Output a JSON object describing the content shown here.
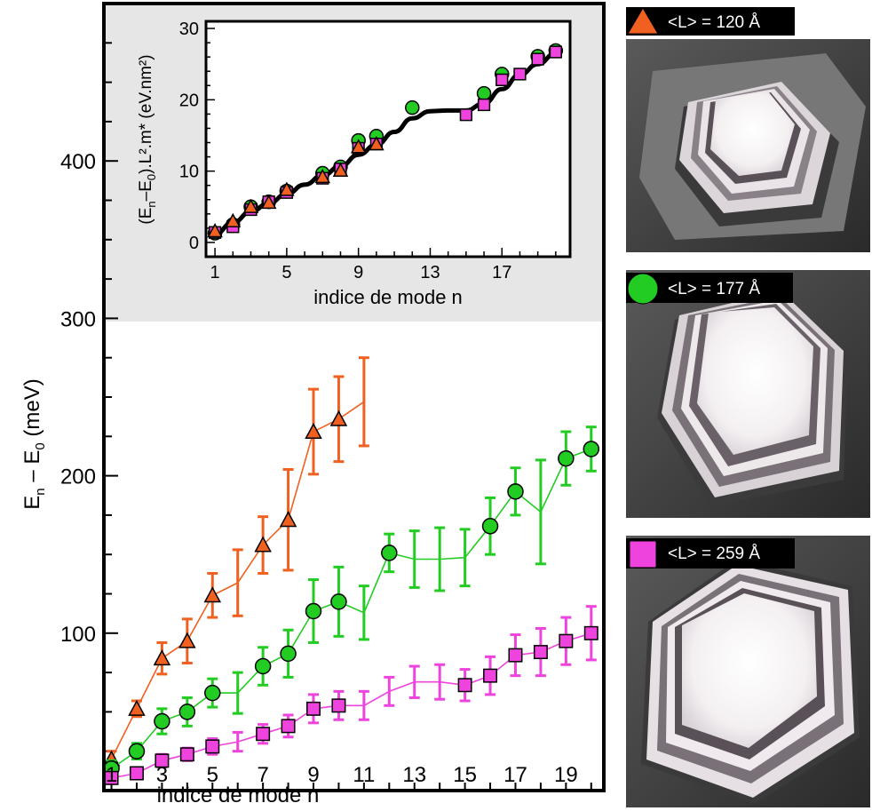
{
  "chart_data": [
    {
      "type": "line",
      "xlabel": "indice de mode  n",
      "ylabel_main": "E",
      "ylabel_sub1": "n",
      "ylabel_mid": " – E",
      "ylabel_sub2": "0",
      "ylabel_unit": " (meV)",
      "xlim": [
        0.7,
        20.5
      ],
      "ylim": [
        0,
        500
      ],
      "xticks": [
        1,
        3,
        5,
        7,
        9,
        11,
        13,
        15,
        17,
        19
      ],
      "yticks": [
        100,
        200,
        300,
        400
      ],
      "grid": false,
      "series": [
        {
          "name": "<L> = 120 Å",
          "marker": "triangle",
          "color": "#f06020",
          "points": [
            {
              "x": 1,
              "y": 20,
              "err": 5,
              "m": true
            },
            {
              "x": 2,
              "y": 52,
              "err": 5,
              "m": true
            },
            {
              "x": 3,
              "y": 84,
              "err": 10,
              "m": true
            },
            {
              "x": 4,
              "y": 95,
              "err": 14,
              "m": true
            },
            {
              "x": 5,
              "y": 124,
              "err": 14,
              "m": true
            },
            {
              "x": 6,
              "y": 132,
              "err": 21,
              "m": false
            },
            {
              "x": 7,
              "y": 156,
              "err": 18,
              "m": true
            },
            {
              "x": 8,
              "y": 172,
              "err": 32,
              "m": true
            },
            {
              "x": 9,
              "y": 228,
              "err": 27,
              "m": true
            },
            {
              "x": 10,
              "y": 236,
              "err": 27,
              "m": true
            },
            {
              "x": 11,
              "y": 247,
              "err": 28,
              "m": false
            }
          ]
        },
        {
          "name": "<L> = 177 Å",
          "marker": "circle",
          "color": "#22cc22",
          "points": [
            {
              "x": 1,
              "y": 14,
              "err": 5,
              "m": true
            },
            {
              "x": 2,
              "y": 25,
              "err": 5,
              "m": true
            },
            {
              "x": 3,
              "y": 44,
              "err": 8,
              "m": true
            },
            {
              "x": 4,
              "y": 50,
              "err": 9,
              "m": true
            },
            {
              "x": 5,
              "y": 62,
              "err": 9,
              "m": true
            },
            {
              "x": 6,
              "y": 62,
              "err": 13,
              "m": false
            },
            {
              "x": 7,
              "y": 79,
              "err": 12,
              "m": true
            },
            {
              "x": 8,
              "y": 87,
              "err": 15,
              "m": true
            },
            {
              "x": 9,
              "y": 114,
              "err": 20,
              "m": true
            },
            {
              "x": 10,
              "y": 120,
              "err": 22,
              "m": true
            },
            {
              "x": 11,
              "y": 113,
              "err": 17,
              "m": false
            },
            {
              "x": 12,
              "y": 151,
              "err": 12,
              "m": true
            },
            {
              "x": 13,
              "y": 147,
              "err": 18,
              "m": false
            },
            {
              "x": 14,
              "y": 147,
              "err": 20,
              "m": false
            },
            {
              "x": 15,
              "y": 148,
              "err": 18,
              "m": false
            },
            {
              "x": 16,
              "y": 168,
              "err": 18,
              "m": true
            },
            {
              "x": 17,
              "y": 190,
              "err": 15,
              "m": true
            },
            {
              "x": 18,
              "y": 177,
              "err": 33,
              "m": false
            },
            {
              "x": 19,
              "y": 211,
              "err": 17,
              "m": true
            },
            {
              "x": 20,
              "y": 217,
              "err": 14,
              "m": true
            }
          ]
        },
        {
          "name": "<L> = 259 Å",
          "marker": "square",
          "color": "#ee44dd",
          "points": [
            {
              "x": 1,
              "y": 8,
              "err": 3,
              "m": true
            },
            {
              "x": 2,
              "y": 11,
              "err": 3,
              "m": true
            },
            {
              "x": 3,
              "y": 19,
              "err": 4,
              "m": true
            },
            {
              "x": 4,
              "y": 23,
              "err": 4,
              "m": true
            },
            {
              "x": 5,
              "y": 28,
              "err": 5,
              "m": true
            },
            {
              "x": 6,
              "y": 31,
              "err": 6,
              "m": false
            },
            {
              "x": 7,
              "y": 36,
              "err": 6,
              "m": true
            },
            {
              "x": 8,
              "y": 41,
              "err": 7,
              "m": true
            },
            {
              "x": 9,
              "y": 52,
              "err": 9,
              "m": true
            },
            {
              "x": 10,
              "y": 54,
              "err": 9,
              "m": true
            },
            {
              "x": 11,
              "y": 54,
              "err": 9,
              "m": false
            },
            {
              "x": 12,
              "y": 63,
              "err": 9,
              "m": false
            },
            {
              "x": 13,
              "y": 69,
              "err": 10,
              "m": false
            },
            {
              "x": 14,
              "y": 69,
              "err": 11,
              "m": false
            },
            {
              "x": 15,
              "y": 67,
              "err": 10,
              "m": true
            },
            {
              "x": 16,
              "y": 73,
              "err": 12,
              "m": true
            },
            {
              "x": 17,
              "y": 86,
              "err": 13,
              "m": true
            },
            {
              "x": 18,
              "y": 88,
              "err": 15,
              "m": true
            },
            {
              "x": 19,
              "y": 95,
              "err": 15,
              "m": true
            },
            {
              "x": 20,
              "y": 100,
              "err": 17,
              "m": true
            }
          ]
        }
      ]
    },
    {
      "type": "scatter",
      "xlabel": "indice de mode n",
      "ylabel": "(E",
      "ylabel_sub1": "n",
      "ylabel_mid": "–E",
      "ylabel_sub2": "0",
      "ylabel_rest": ").L².m* (eV.nm²)",
      "xlim": [
        0.5,
        20.8
      ],
      "ylim": [
        -2,
        31
      ],
      "xticks": [
        1,
        5,
        9,
        13,
        17
      ],
      "yticks": [
        0,
        10,
        20,
        30
      ],
      "grid": false,
      "reference_curve": [
        [
          1,
          1.2
        ],
        [
          2,
          2.8
        ],
        [
          3,
          4.3
        ],
        [
          4,
          5.5
        ],
        [
          5,
          6.8
        ],
        [
          6,
          8.1
        ],
        [
          7,
          9.4
        ],
        [
          8,
          10.7
        ],
        [
          9,
          12.3
        ],
        [
          10,
          13.7
        ],
        [
          11,
          15.5
        ],
        [
          12,
          17.4
        ],
        [
          13,
          18.4
        ],
        [
          14,
          18.5
        ],
        [
          15,
          18.5
        ],
        [
          16,
          19.5
        ],
        [
          17,
          21.5
        ],
        [
          18,
          23.5
        ],
        [
          19,
          25.0
        ],
        [
          20,
          26.5
        ]
      ],
      "series": [
        {
          "name": "<L> = 120 Å",
          "marker": "triangle",
          "color": "#f06020",
          "points": [
            [
              1,
              1.6
            ],
            [
              2,
              3.0
            ],
            [
              3,
              5.0
            ],
            [
              4,
              5.6
            ],
            [
              5,
              7.4
            ],
            [
              7,
              9.2
            ],
            [
              8,
              10.1
            ],
            [
              9,
              13.4
            ],
            [
              10,
              13.8
            ]
          ]
        },
        {
          "name": "<L> = 177 Å",
          "marker": "circle",
          "color": "#22cc22",
          "points": [
            [
              1,
              1.3
            ],
            [
              2,
              2.5
            ],
            [
              3,
              5.0
            ],
            [
              4,
              5.7
            ],
            [
              5,
              7.2
            ],
            [
              7,
              9.7
            ],
            [
              8,
              10.6
            ],
            [
              9,
              14.3
            ],
            [
              10,
              14.9
            ],
            [
              12,
              18.9
            ],
            [
              16,
              20.9
            ],
            [
              17,
              23.6
            ],
            [
              19,
              26.1
            ],
            [
              20,
              26.9
            ]
          ]
        },
        {
          "name": "<L> = 259 Å",
          "marker": "square",
          "color": "#ee44dd",
          "points": [
            [
              1,
              1.4
            ],
            [
              2,
              2.2
            ],
            [
              3,
              4.6
            ],
            [
              4,
              5.7
            ],
            [
              5,
              7.0
            ],
            [
              7,
              9.0
            ],
            [
              8,
              10.3
            ],
            [
              9,
              13.2
            ],
            [
              10,
              13.8
            ],
            [
              15,
              17.9
            ],
            [
              16,
              19.3
            ],
            [
              17,
              22.8
            ],
            [
              18,
              23.6
            ],
            [
              19,
              25.7
            ],
            [
              20,
              26.7
            ]
          ]
        }
      ]
    }
  ],
  "legend": [
    {
      "marker": "triangle",
      "color": "#f06020",
      "label": "<L> = 120 Å"
    },
    {
      "marker": "circle",
      "color": "#22cc22",
      "label": "<L> = 177 Å"
    },
    {
      "marker": "square",
      "color": "#ee44dd",
      "label": "<L> = 259 Å"
    }
  ],
  "colors": {
    "inset_background": "#e6e6e6",
    "frame": "#000000",
    "reference_curve": "#000000"
  }
}
